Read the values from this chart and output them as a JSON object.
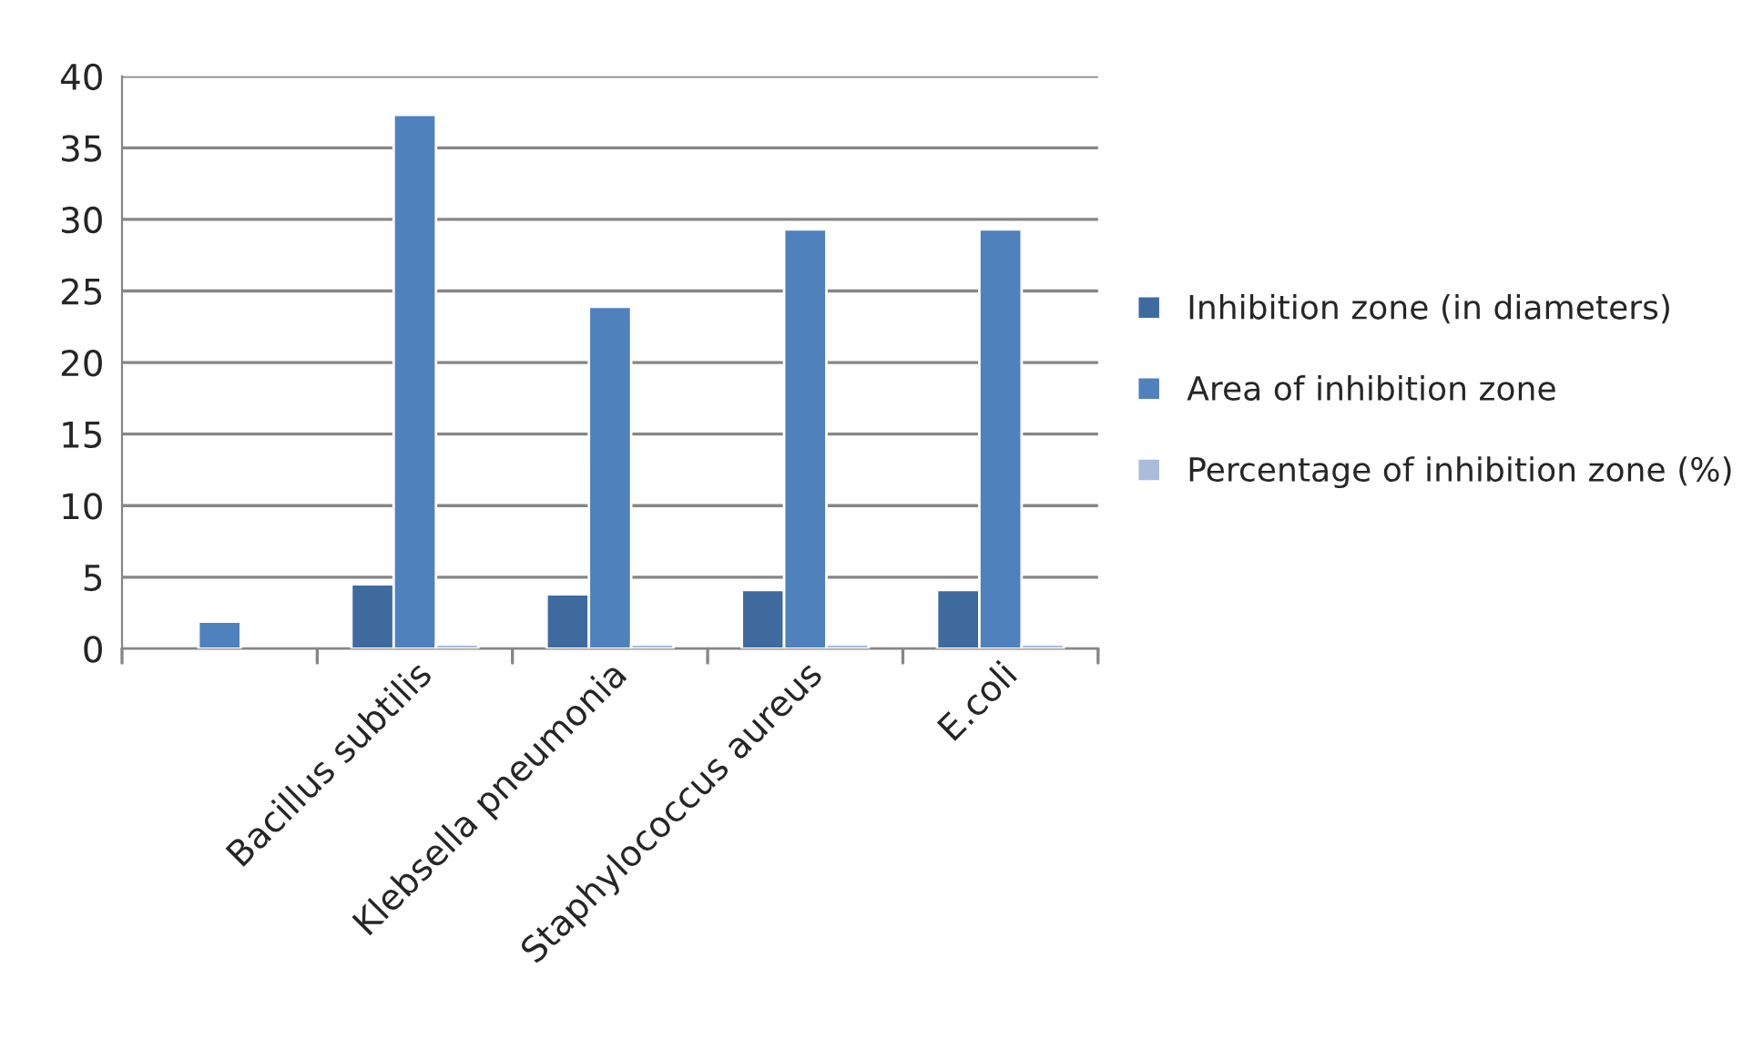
{
  "chart_data": {
    "type": "bar",
    "categories": [
      null,
      "Bacillus subtilis",
      "Klebsella pneumonia",
      "Staphylococcus aureus",
      "E.coli"
    ],
    "series": [
      {
        "name": "Inhibition zone (in diameters)",
        "color": "#3f6a9e",
        "values": [
          null,
          4.5,
          3.8,
          4.1,
          4.1
        ]
      },
      {
        "name": "Area of inhibition zone",
        "color": "#4f81bd",
        "values": [
          1.9,
          37.3,
          23.9,
          29.3,
          29.3
        ]
      },
      {
        "name": "Percentage of inhibition zone (%)",
        "color": "#a9bcdb",
        "values": [
          null,
          0.3,
          0.3,
          0.3,
          0.3
        ]
      }
    ],
    "ylim": [
      0,
      40
    ],
    "yticks": [
      0,
      5,
      10,
      15,
      20,
      25,
      30,
      35,
      40
    ],
    "grid": "y",
    "legend": "right"
  }
}
